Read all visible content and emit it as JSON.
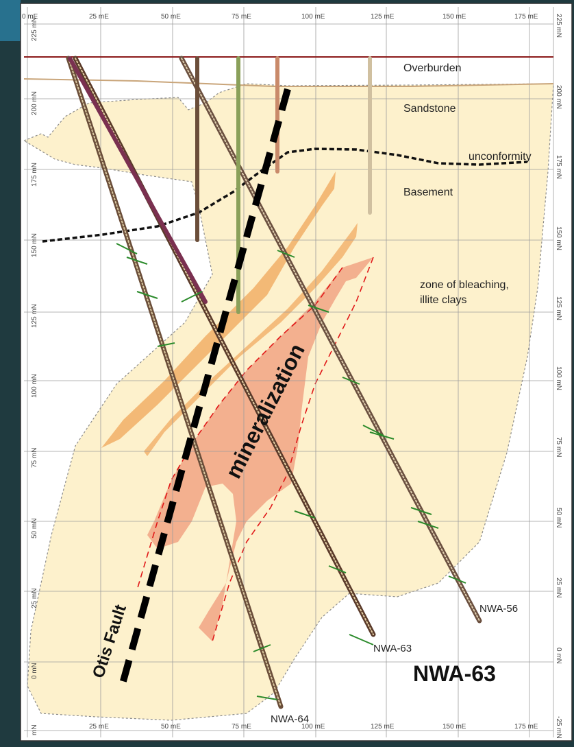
{
  "grid": {
    "x_ticks_top": [
      "0 mE",
      "25 mE",
      "50 mE",
      "75 mE",
      "100 mE",
      "125 mE",
      "150 mE",
      "175 mE"
    ],
    "x_ticks_bottom": [
      "25 mE",
      "50 mE",
      "75 mE",
      "100 mE",
      "125 mE",
      "150 mE",
      "175 mE"
    ],
    "y_ticks_left": [
      "225 mN",
      "200 mN",
      "175 mN",
      "150 mN",
      "125 mN",
      "100 mN",
      "75 mN",
      "50 mN",
      "25 mN",
      "0 mN",
      "mN"
    ],
    "y_ticks_right": [
      "225 mN",
      "200 mN",
      "175 mN",
      "150 mN",
      "125 mN",
      "100 mN",
      "75 mN",
      "50 mN",
      "25 mN",
      "0 mN",
      "-25 mN"
    ]
  },
  "labels": {
    "overburden": "Overburden",
    "sandstone": "Sandstone",
    "unconformity": "unconformity",
    "basement": "Basement",
    "bleaching_1": "zone of bleaching,",
    "bleaching_2": "illite clays",
    "mineralization": "mineralization",
    "otis_fault": "Otis Fault"
  },
  "drillholes": {
    "nwa56": "NWA-56",
    "nwa63": "NWA-63",
    "nwa64": "NWA-64"
  },
  "title": "NWA-63",
  "colors": {
    "background": "#ffffff",
    "bleach_zone": "#fdf1cc",
    "mineralization": "#f0a080",
    "orange_band": "#f2b36d",
    "fault": "#000000",
    "grid": "#9c9c9c",
    "overburden_line": "#8b1a1a",
    "sandstone_line": "#c9a57a"
  }
}
